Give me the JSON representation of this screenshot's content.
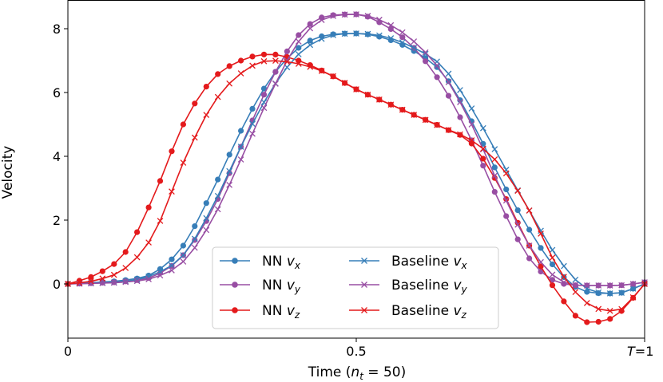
{
  "chart_data": {
    "type": "line",
    "xlabel_prefix": "Time (",
    "xlabel_var": "n",
    "xlabel_sub": "t",
    "xlabel_suffix": " = 50)",
    "ylabel": "Velocity",
    "xlim": [
      0,
      1
    ],
    "ylim": [
      -1.7,
      8.9
    ],
    "x_ticks": [
      {
        "value": 0,
        "label": "0"
      },
      {
        "value": 0.5,
        "label": "0.5"
      },
      {
        "value": 1,
        "label": "T=1"
      }
    ],
    "y_ticks": [
      0,
      2,
      4,
      6,
      8
    ],
    "x_knots": [
      0,
      0.05,
      0.1,
      0.15,
      0.2,
      0.25,
      0.3,
      0.35,
      0.4,
      0.45,
      0.5,
      0.55,
      0.6,
      0.65,
      0.7,
      0.75,
      0.8,
      0.85,
      0.9,
      0.95,
      1.0
    ],
    "n_points": 51,
    "series": [
      {
        "name": "NN v_x",
        "label": "NN",
        "sub": "x",
        "color": "#377eb8",
        "marker": "circle",
        "values": [
          0,
          0.05,
          0.12,
          0.35,
          1.2,
          2.9,
          4.8,
          6.4,
          7.4,
          7.8,
          7.85,
          7.7,
          7.3,
          6.6,
          5.1,
          3.3,
          1.7,
          0.4,
          -0.25,
          -0.3,
          0
        ]
      },
      {
        "name": "NN v_y",
        "label": "NN",
        "sub": "y",
        "color": "#984ea3",
        "marker": "circle",
        "values": [
          0,
          0.03,
          0.08,
          0.25,
          0.9,
          2.3,
          4.3,
          6.3,
          7.8,
          8.4,
          8.45,
          8.1,
          7.4,
          6.2,
          4.5,
          2.5,
          0.8,
          0.05,
          -0.05,
          -0.05,
          0.05
        ]
      },
      {
        "name": "NN v_z",
        "label": "NN",
        "sub": "z",
        "color": "#e41a1c",
        "marker": "circle",
        "values": [
          0,
          0.3,
          1.0,
          2.8,
          5.0,
          6.4,
          7.0,
          7.2,
          7.0,
          6.6,
          6.1,
          5.7,
          5.3,
          4.9,
          4.4,
          3.0,
          1.2,
          -0.3,
          -1.2,
          -1.0,
          0
        ]
      },
      {
        "name": "Baseline v_x",
        "label": "Baseline",
        "sub": "x",
        "color": "#377eb8",
        "marker": "x",
        "values": [
          0,
          0.03,
          0.08,
          0.3,
          0.9,
          2.4,
          4.3,
          6.0,
          7.2,
          7.75,
          7.85,
          7.75,
          7.4,
          6.8,
          5.5,
          3.9,
          2.3,
          0.8,
          -0.15,
          -0.3,
          0
        ]
      },
      {
        "name": "Baseline v_y",
        "label": "Baseline",
        "sub": "y",
        "color": "#984ea3",
        "marker": "x",
        "values": [
          0,
          0.02,
          0.06,
          0.2,
          0.7,
          2.0,
          3.9,
          5.9,
          7.6,
          8.35,
          8.45,
          8.2,
          7.6,
          6.6,
          5.0,
          3.0,
          1.2,
          0.15,
          -0.05,
          -0.05,
          0.05
        ]
      },
      {
        "name": "Baseline v_z",
        "label": "Baseline",
        "sub": "z",
        "color": "#e41a1c",
        "marker": "x",
        "values": [
          0,
          0.12,
          0.5,
          1.6,
          3.8,
          5.6,
          6.6,
          7.0,
          6.9,
          6.6,
          6.1,
          5.7,
          5.3,
          4.9,
          4.5,
          3.7,
          2.3,
          0.5,
          -0.6,
          -0.85,
          0
        ]
      }
    ]
  }
}
